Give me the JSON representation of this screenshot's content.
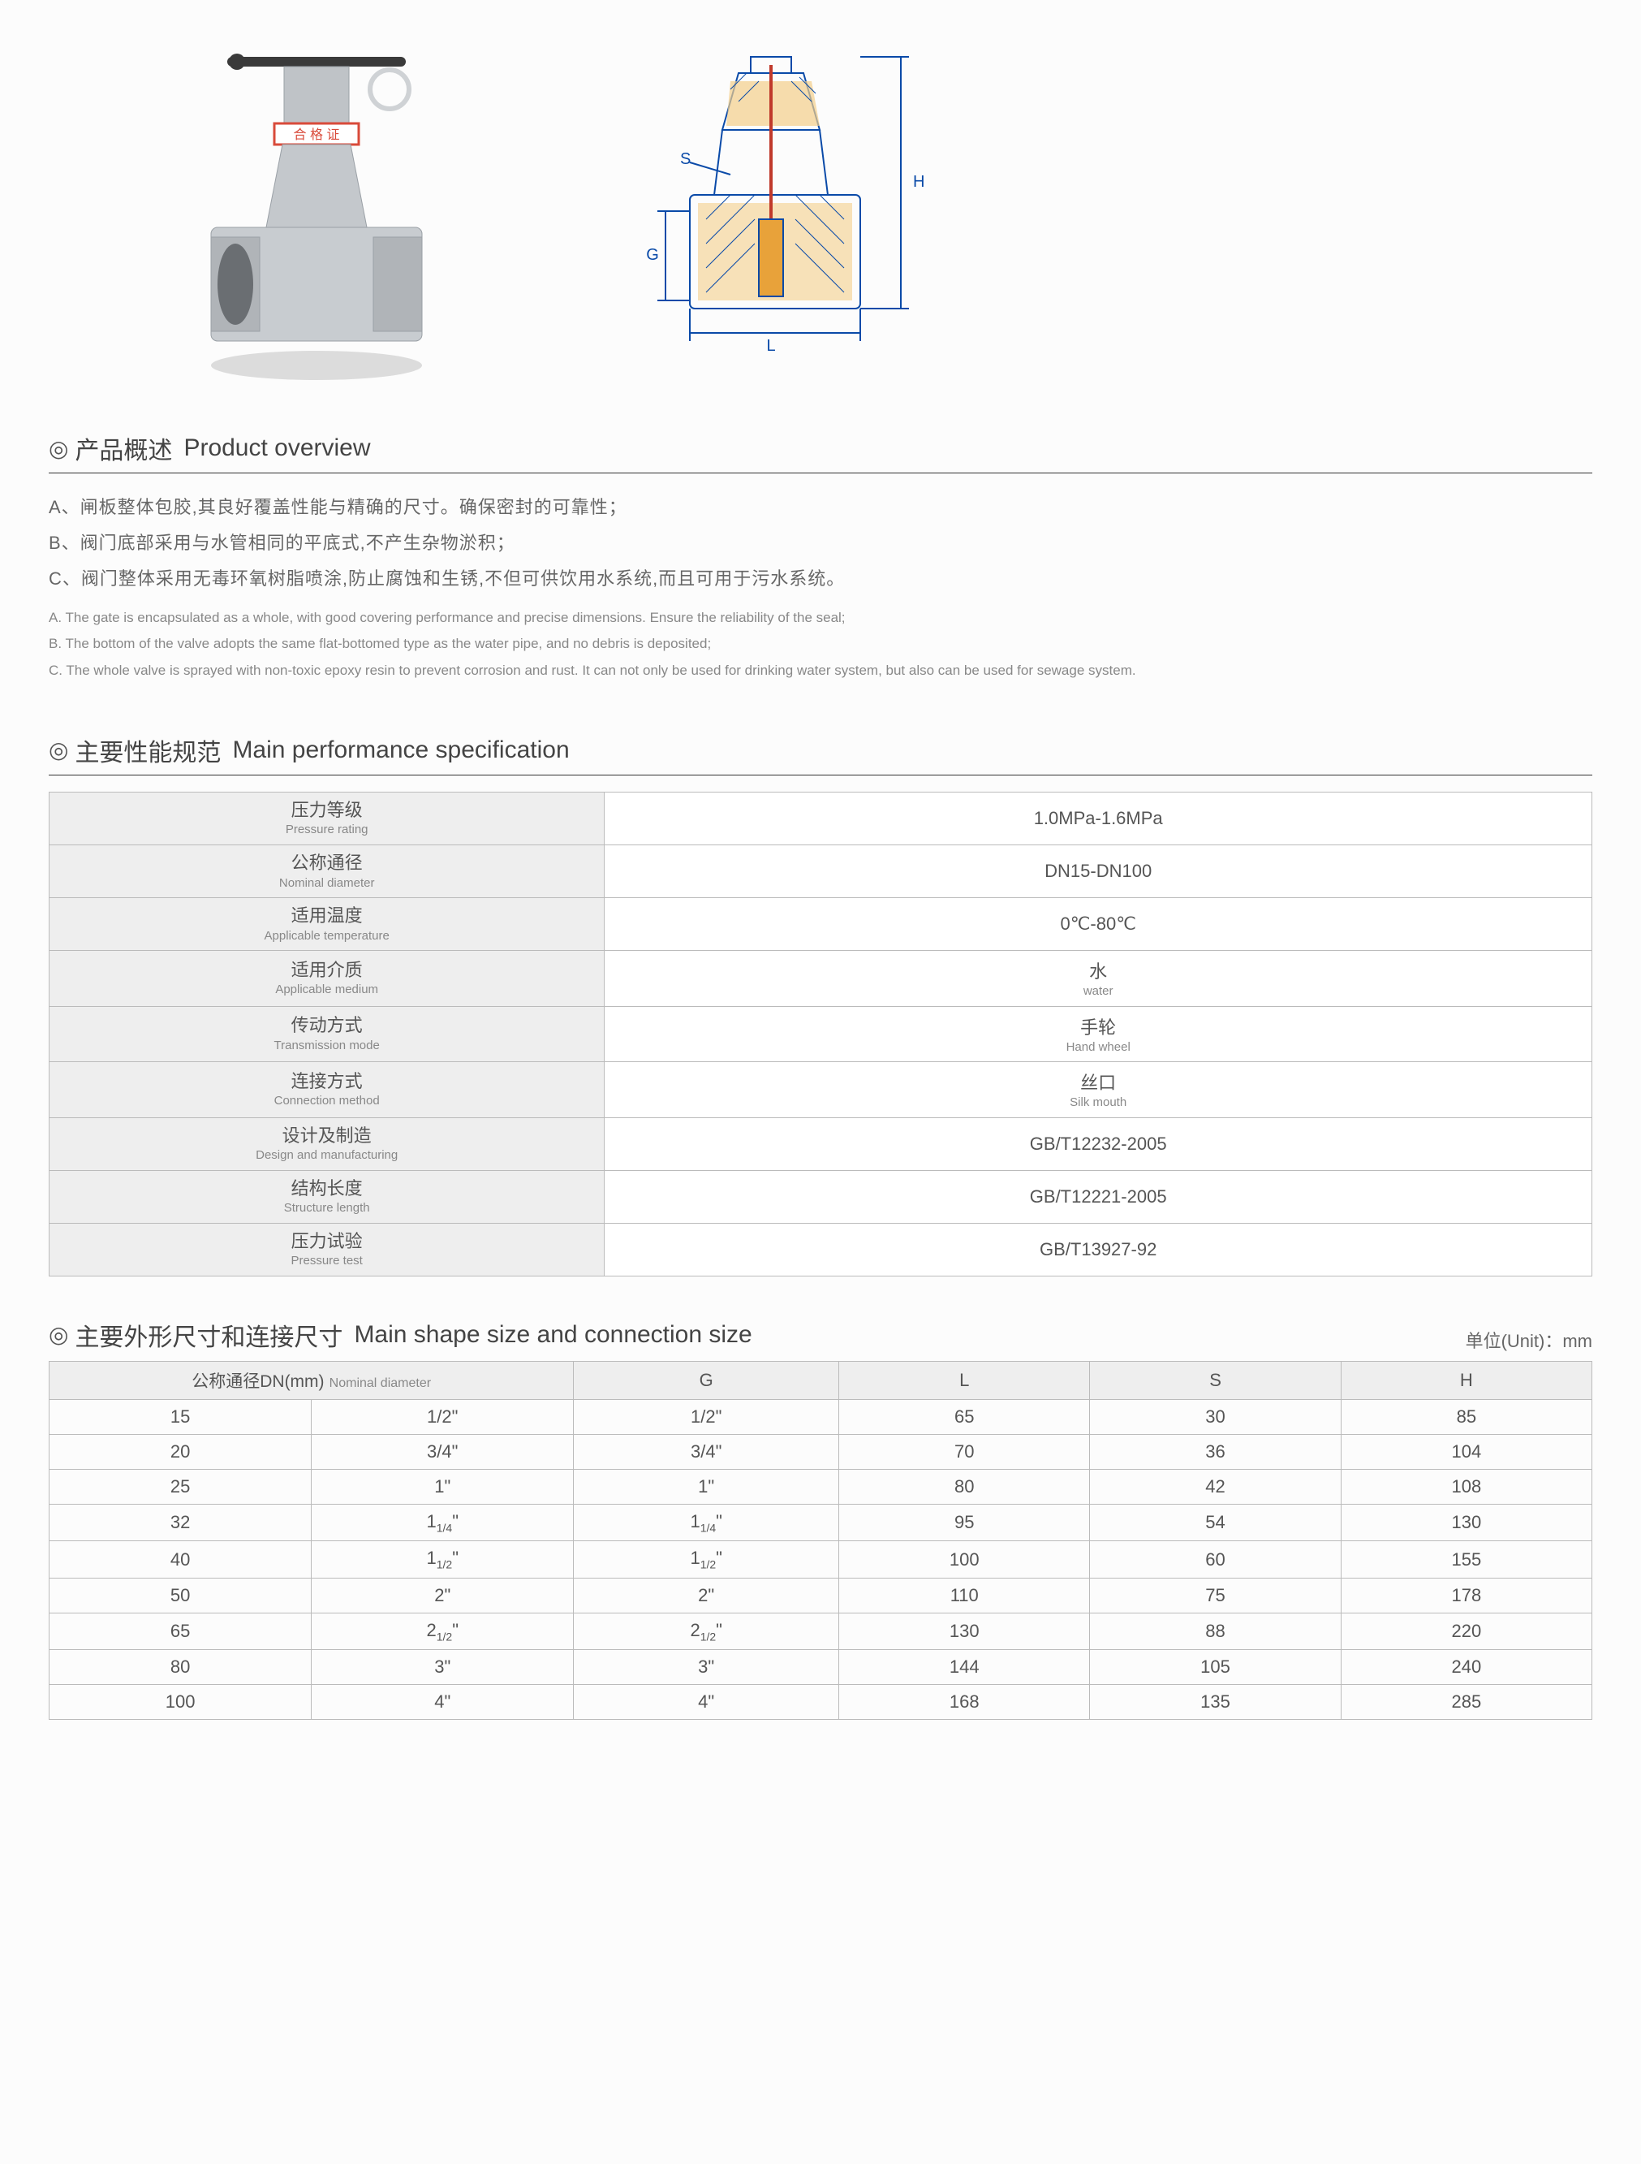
{
  "images": {
    "photo_label_band": "合 格 证",
    "drawing_labels": {
      "S": "S",
      "G": "G",
      "L": "L",
      "H": "H"
    },
    "drawing_colors": {
      "outline": "#0a4aa8",
      "hatch": "#e8a23a",
      "stem": "#c0392b",
      "background": "#ffffff"
    },
    "photo_colors": {
      "body": "#b8bcc0",
      "band": "#d94a3a",
      "handle": "#3a3a3a",
      "ring": "#cfd2d5"
    }
  },
  "overview": {
    "icon": "◎",
    "title_cn": "产品概述",
    "title_en": "Product overview",
    "items_cn": [
      "A、闸板整体包胶,其良好覆盖性能与精确的尺寸。确保密封的可靠性；",
      "B、阀门底部采用与水管相同的平底式,不产生杂物淤积；",
      "C、阀门整体采用无毒环氧树脂喷涂,防止腐蚀和生锈,不但可供饮用水系统,而且可用于污水系统。"
    ],
    "items_en": [
      "A. The gate is encapsulated as a whole, with good covering performance and precise dimensions. Ensure the reliability of the seal;",
      "B. The bottom of the valve adopts the same flat-bottomed type as the water pipe, and no debris is deposited;",
      "C. The whole valve is sprayed with non-toxic epoxy resin to prevent corrosion and rust. It can not only be used for drinking water system, but also can be used for sewage system."
    ]
  },
  "spec": {
    "icon": "◎",
    "title_cn": "主要性能规范",
    "title_en": "Main performance specification",
    "rows": [
      {
        "label_cn": "压力等级",
        "label_en": "Pressure rating",
        "value": "1.0MPa-1.6MPa",
        "value_sub": ""
      },
      {
        "label_cn": "公称通径",
        "label_en": "Nominal diameter",
        "value": "DN15-DN100",
        "value_sub": ""
      },
      {
        "label_cn": "适用温度",
        "label_en": "Applicable temperature",
        "value": "0℃-80℃",
        "value_sub": ""
      },
      {
        "label_cn": "适用介质",
        "label_en": "Applicable medium",
        "value": "水",
        "value_sub": "water"
      },
      {
        "label_cn": "传动方式",
        "label_en": "Transmission mode",
        "value": "手轮",
        "value_sub": "Hand wheel"
      },
      {
        "label_cn": "连接方式",
        "label_en": "Connection method",
        "value": "丝口",
        "value_sub": "Silk mouth"
      },
      {
        "label_cn": "设计及制造",
        "label_en": "Design and manufacturing",
        "value": "GB/T12232-2005",
        "value_sub": ""
      },
      {
        "label_cn": "结构长度",
        "label_en": "Structure length",
        "value": "GB/T12221-2005",
        "value_sub": ""
      },
      {
        "label_cn": "压力试验",
        "label_en": "Pressure test",
        "value": "GB/T13927-92",
        "value_sub": ""
      }
    ]
  },
  "dim": {
    "icon": "◎",
    "title_cn": "主要外形尺寸和连接尺寸",
    "title_en": "Main shape size and connection size",
    "unit_label": "单位(Unit)：mm",
    "header": {
      "col1_cn": "公称通径DN(mm)",
      "col1_en": "Nominal diameter",
      "cols": [
        "G",
        "L",
        "S",
        "H"
      ]
    },
    "rows": [
      {
        "dn": "15",
        "inch": "1/2\"",
        "G": "1/2\"",
        "L": "65",
        "S": "30",
        "H": "85"
      },
      {
        "dn": "20",
        "inch": "3/4\"",
        "G": "3/4\"",
        "L": "70",
        "S": "36",
        "H": "104"
      },
      {
        "dn": "25",
        "inch": "1\"",
        "G": "1\"",
        "L": "80",
        "S": "42",
        "H": "108"
      },
      {
        "dn": "32",
        "inch": "1¼\"",
        "G": "1¼\"",
        "L": "95",
        "S": "54",
        "H": "130"
      },
      {
        "dn": "40",
        "inch": "1½\"",
        "G": "1½\"",
        "L": "100",
        "S": "60",
        "H": "155"
      },
      {
        "dn": "50",
        "inch": "2\"",
        "G": "2\"",
        "L": "110",
        "S": "75",
        "H": "178"
      },
      {
        "dn": "65",
        "inch": "2½\"",
        "G": "2½\"",
        "L": "130",
        "S": "88",
        "H": "220"
      },
      {
        "dn": "80",
        "inch": "3\"",
        "G": "3\"",
        "L": "144",
        "S": "105",
        "H": "240"
      },
      {
        "dn": "100",
        "inch": "4\"",
        "G": "4\"",
        "L": "168",
        "S": "135",
        "H": "285"
      }
    ]
  },
  "styling": {
    "page_bg": "#fcfcfc",
    "text_primary": "#444444",
    "text_secondary": "#888888",
    "border_color": "#bbbbbb",
    "header_bg": "#eeeeee",
    "title_fontsize": 30,
    "cn_fontsize": 22,
    "en_fontsize": 16
  }
}
